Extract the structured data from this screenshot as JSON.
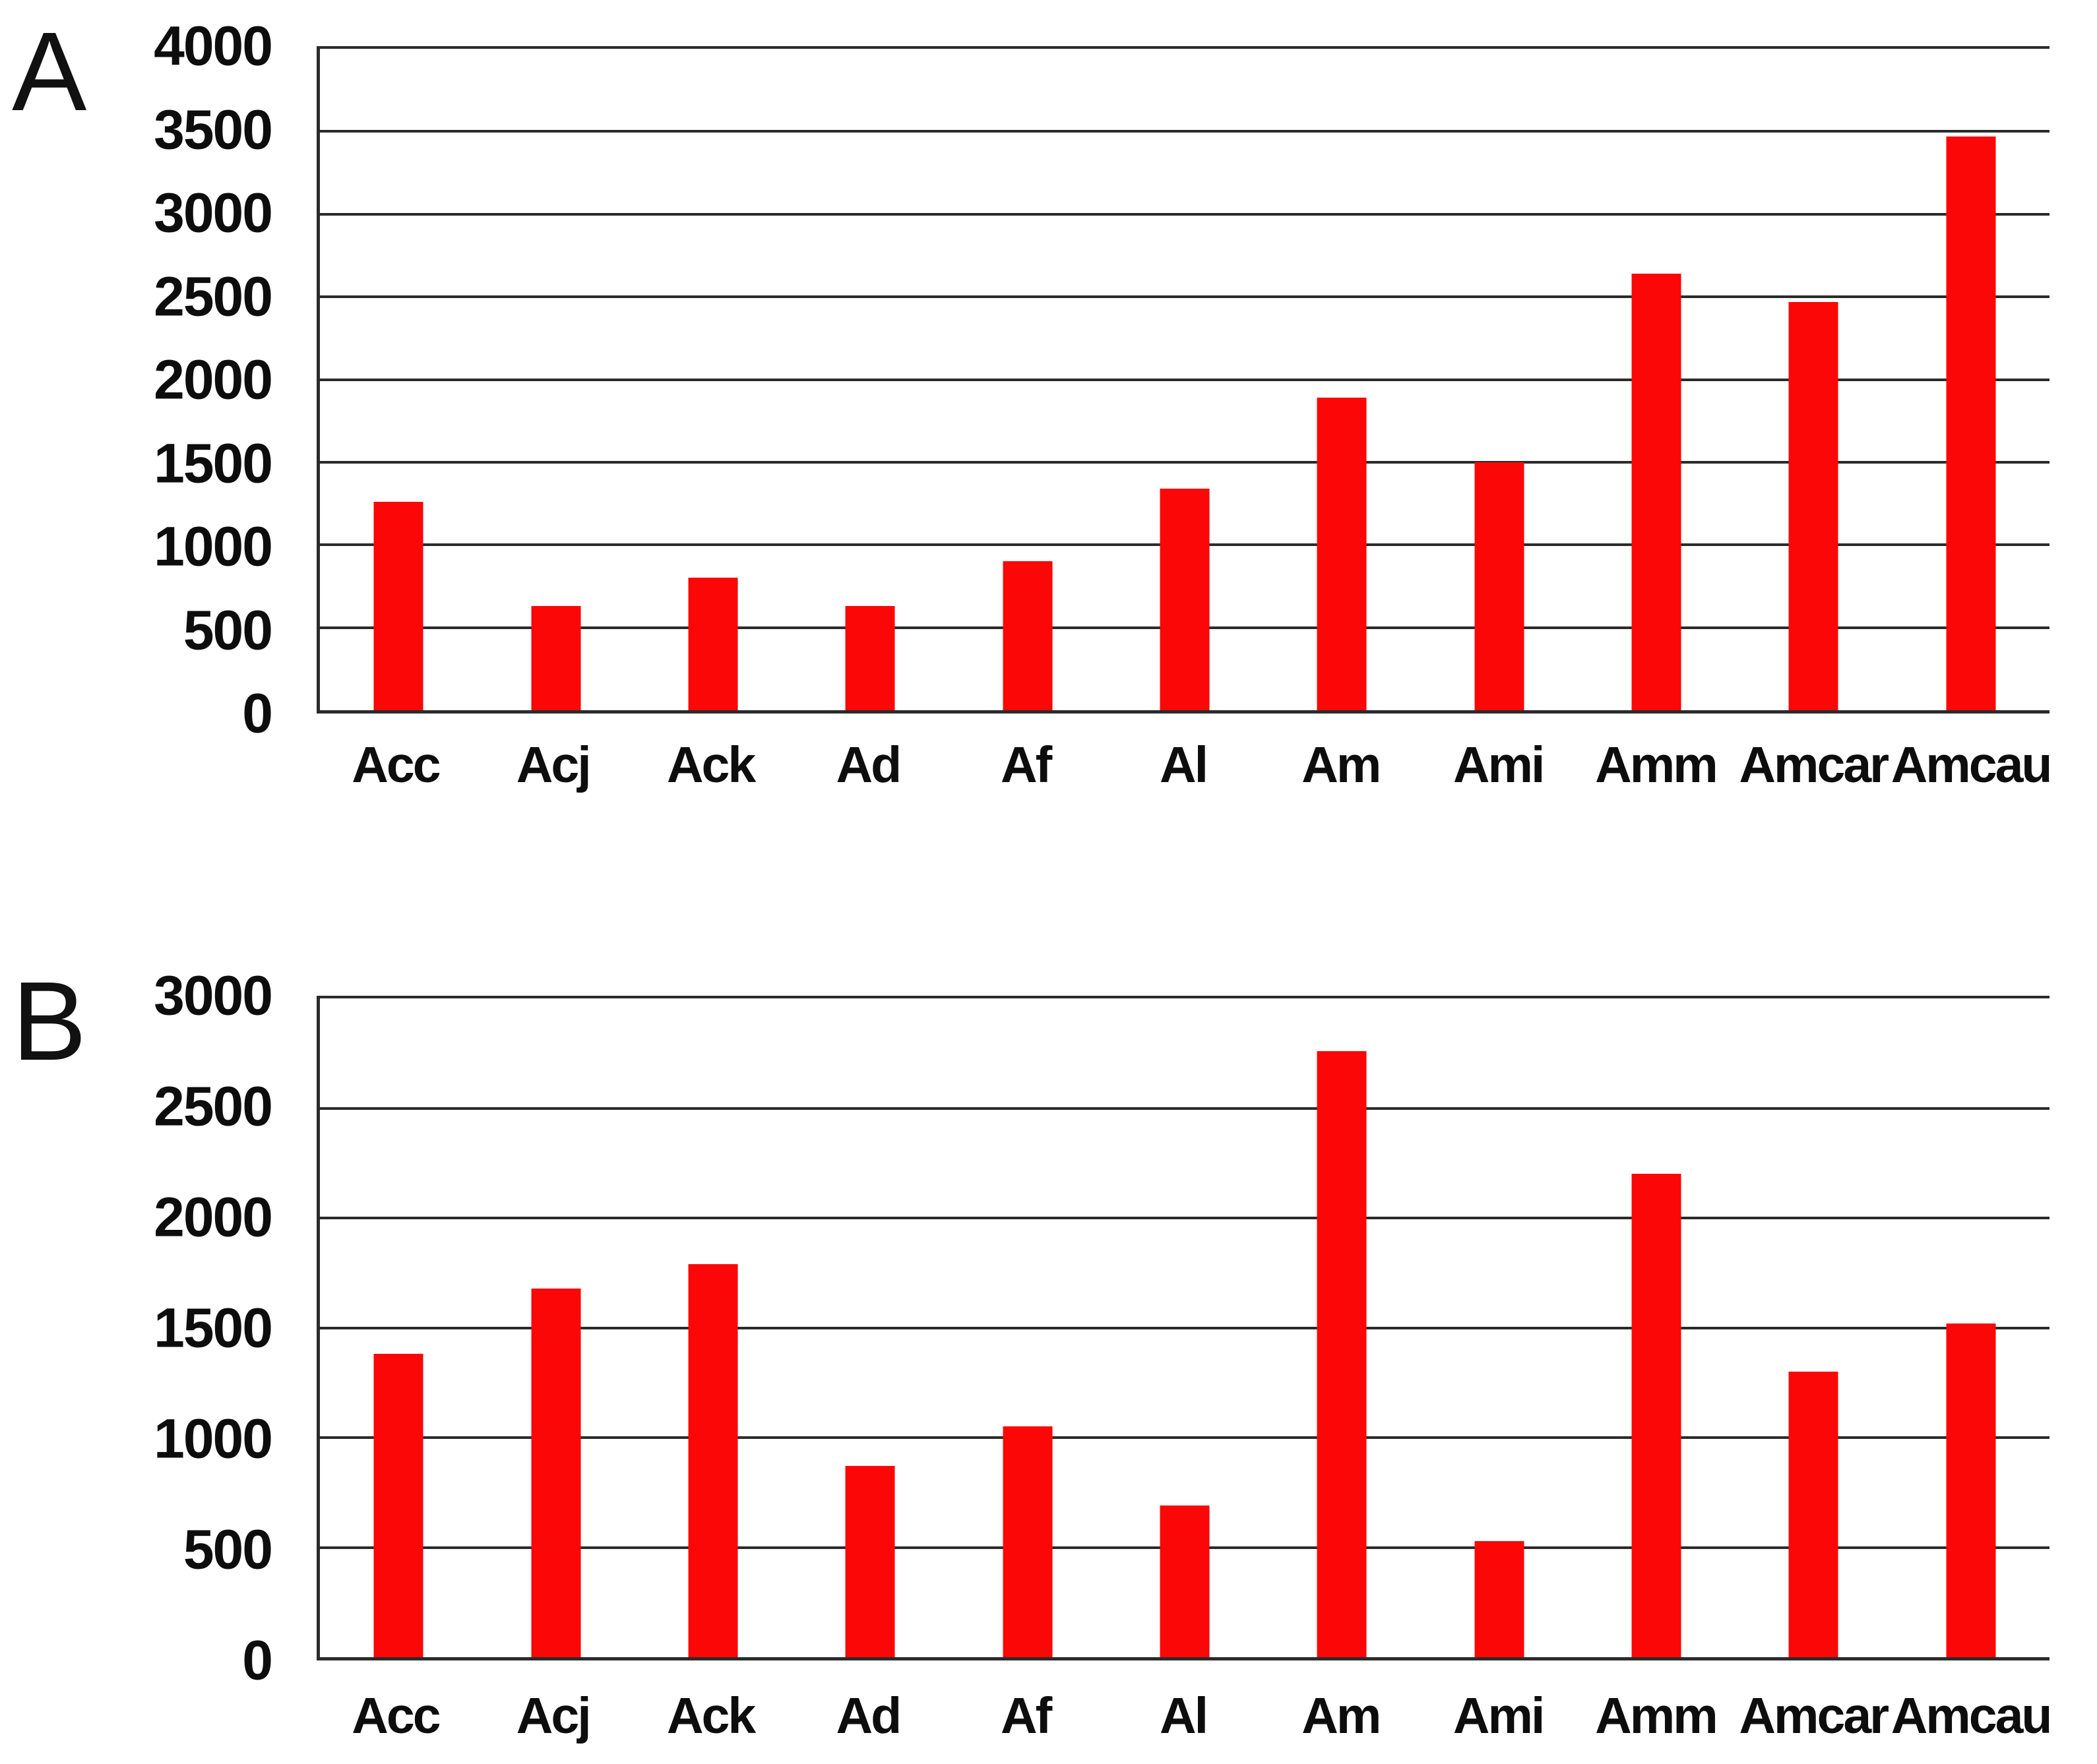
{
  "figure": {
    "background": "#ffffff",
    "text_color": "#0d0d0d",
    "grid_color": "#2b2b2b",
    "bar_color": "#fb0707"
  },
  "panels": [
    {
      "letter": "A"
    },
    {
      "letter": "B"
    }
  ],
  "chart_data": [
    {
      "type": "bar",
      "panel": "A",
      "title": "",
      "xlabel": "",
      "ylabel": "",
      "categories": [
        "Acc",
        "Acj",
        "Ack",
        "Ad",
        "Af",
        "Al",
        "Am",
        "Ami",
        "Amm",
        "Amcar",
        "Amcau"
      ],
      "values": [
        1260,
        630,
        800,
        630,
        900,
        1340,
        1890,
        1500,
        2640,
        2470,
        3470
      ],
      "ylim": [
        0,
        4000
      ],
      "ytick_step": 500,
      "ytick_labels": [
        "4000",
        "3500",
        "3000",
        "2500",
        "2000",
        "1500",
        "1000",
        "500",
        "0"
      ],
      "grid": true,
      "legend": false,
      "bar_color": "#fb0707"
    },
    {
      "type": "bar",
      "panel": "B",
      "title": "",
      "xlabel": "",
      "ylabel": "",
      "categories": [
        "Acc",
        "Acj",
        "Ack",
        "Ad",
        "Af",
        "Al",
        "Am",
        "Ami",
        "Amm",
        "Amcar",
        "Amcau"
      ],
      "values": [
        1380,
        1680,
        1790,
        870,
        1050,
        690,
        2760,
        530,
        2200,
        1300,
        1520
      ],
      "ylim": [
        0,
        3000
      ],
      "ytick_step": 500,
      "ytick_labels": [
        "3000",
        "2500",
        "2000",
        "1500",
        "1000",
        "500",
        "0"
      ],
      "grid": true,
      "legend": false,
      "bar_color": "#fb0707"
    }
  ]
}
